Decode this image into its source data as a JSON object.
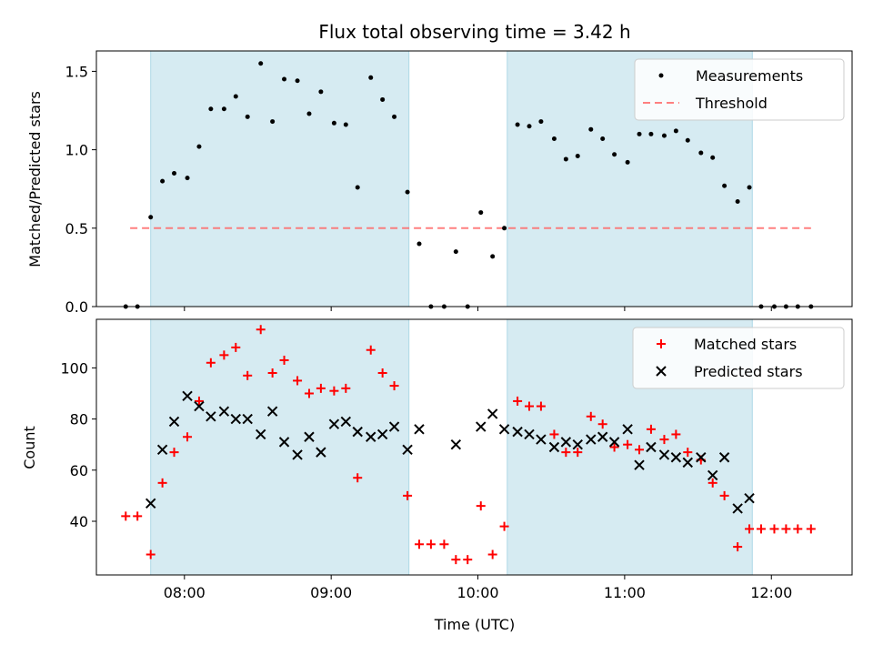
{
  "colors": {
    "shade": "#add8e6",
    "measurement": "#000000",
    "threshold": "#ff6b6b",
    "matched": "#ff0000",
    "predicted": "#000000"
  },
  "chart_data": [
    {
      "type": "scatter",
      "title": "Flux total observing time = 3.42 h",
      "xlabel": "",
      "ylabel": "Matched/Predicted stars",
      "xlim_hours": [
        7.4,
        12.55
      ],
      "ylim": [
        0,
        1.63
      ],
      "yticks": [
        0.0,
        0.5,
        1.0,
        1.5
      ],
      "ytick_labels": [
        "0.0",
        "0.5",
        "1.0",
        "1.5"
      ],
      "shaded_intervals": [
        {
          "start": 7.77,
          "end": 9.53
        },
        {
          "start": 10.2,
          "end": 11.87
        }
      ],
      "threshold": {
        "name": "Threshold",
        "value": 0.5,
        "x_start": 7.63,
        "x_end": 12.27
      },
      "legend": [
        "Measurements",
        "Threshold"
      ],
      "legend_position": "upper right",
      "series": [
        {
          "name": "Measurements",
          "x": [
            7.6,
            7.68,
            7.77,
            7.85,
            7.93,
            8.02,
            8.1,
            8.18,
            8.27,
            8.35,
            8.43,
            8.52,
            8.6,
            8.68,
            8.77,
            8.85,
            8.93,
            9.02,
            9.1,
            9.18,
            9.27,
            9.35,
            9.43,
            9.52,
            9.6,
            9.68,
            9.77,
            9.85,
            9.93,
            10.02,
            10.1,
            10.18,
            10.27,
            10.35,
            10.43,
            10.52,
            10.6,
            10.68,
            10.77,
            10.85,
            10.93,
            11.02,
            11.1,
            11.18,
            11.27,
            11.35,
            11.43,
            11.52,
            11.6,
            11.68,
            11.77,
            11.85,
            11.93,
            12.02,
            12.1,
            12.18,
            12.27
          ],
          "y": [
            0.0,
            0.0,
            0.57,
            0.8,
            0.85,
            0.82,
            1.02,
            1.26,
            1.26,
            1.34,
            1.21,
            1.55,
            1.18,
            1.45,
            1.44,
            1.23,
            1.37,
            1.17,
            1.16,
            0.76,
            1.46,
            1.32,
            1.21,
            0.73,
            0.4,
            0.0,
            0.0,
            0.35,
            0.0,
            0.6,
            0.32,
            0.5,
            1.16,
            1.15,
            1.18,
            1.07,
            0.94,
            0.96,
            1.13,
            1.07,
            0.97,
            0.92,
            1.1,
            1.1,
            1.09,
            1.12,
            1.06,
            0.98,
            0.95,
            0.77,
            0.67,
            0.76,
            0.0,
            0.0,
            0.0,
            0.0,
            0.0
          ]
        }
      ]
    },
    {
      "type": "scatter",
      "title": "",
      "xlabel": "Time (UTC)",
      "ylabel": "Count",
      "xlim_hours": [
        7.4,
        12.55
      ],
      "ylim": [
        19,
        119
      ],
      "yticks": [
        40,
        60,
        80,
        100
      ],
      "ytick_labels": [
        "40",
        "60",
        "80",
        "100"
      ],
      "xticks_hours": [
        8,
        9,
        10,
        11,
        12
      ],
      "xtick_labels": [
        "08:00",
        "09:00",
        "10:00",
        "11:00",
        "12:00"
      ],
      "shaded_intervals": [
        {
          "start": 7.77,
          "end": 9.53
        },
        {
          "start": 10.2,
          "end": 11.87
        }
      ],
      "legend": [
        "Matched stars",
        "Predicted stars"
      ],
      "legend_position": "upper right",
      "series": [
        {
          "name": "Matched stars",
          "marker": "plus",
          "x": [
            7.6,
            7.68,
            7.77,
            7.85,
            7.93,
            8.02,
            8.1,
            8.18,
            8.27,
            8.35,
            8.43,
            8.52,
            8.6,
            8.68,
            8.77,
            8.85,
            8.93,
            9.02,
            9.1,
            9.18,
            9.27,
            9.35,
            9.43,
            9.52,
            9.6,
            9.68,
            9.77,
            9.85,
            9.93,
            10.02,
            10.1,
            10.18,
            10.27,
            10.35,
            10.43,
            10.52,
            10.6,
            10.68,
            10.77,
            10.85,
            10.93,
            11.02,
            11.1,
            11.18,
            11.27,
            11.35,
            11.43,
            11.52,
            11.6,
            11.68,
            11.77,
            11.85,
            11.93,
            12.02,
            12.1,
            12.18,
            12.27
          ],
          "y": [
            42,
            42,
            27,
            55,
            67,
            73,
            87,
            102,
            105,
            108,
            97,
            115,
            98,
            103,
            95,
            90,
            92,
            91,
            92,
            57,
            107,
            98,
            93,
            50,
            31,
            31,
            31,
            25,
            25,
            46,
            27,
            38,
            87,
            85,
            85,
            74,
            67,
            67,
            81,
            78,
            69,
            70,
            68,
            76,
            72,
            74,
            67,
            64,
            55,
            50,
            30,
            37,
            37,
            37,
            37,
            37,
            37
          ]
        },
        {
          "name": "Predicted stars",
          "marker": "x",
          "x": [
            7.77,
            7.85,
            7.93,
            8.02,
            8.1,
            8.18,
            8.27,
            8.35,
            8.43,
            8.52,
            8.6,
            8.68,
            8.77,
            8.85,
            8.93,
            9.02,
            9.1,
            9.18,
            9.27,
            9.35,
            9.43,
            9.52,
            9.6,
            9.85,
            10.02,
            10.1,
            10.18,
            10.27,
            10.35,
            10.43,
            10.52,
            10.6,
            10.68,
            10.77,
            10.85,
            10.93,
            11.02,
            11.1,
            11.18,
            11.27,
            11.35,
            11.43,
            11.52,
            11.6,
            11.68,
            11.77,
            11.85
          ],
          "y": [
            47,
            68,
            79,
            89,
            85,
            81,
            83,
            80,
            80,
            74,
            83,
            71,
            66,
            73,
            67,
            78,
            79,
            75,
            73,
            74,
            77,
            68,
            76,
            70,
            77,
            82,
            76,
            75,
            74,
            72,
            69,
            71,
            70,
            72,
            73,
            71,
            76,
            62,
            69,
            66,
            65,
            63,
            65,
            58,
            65,
            45,
            49
          ]
        }
      ]
    }
  ]
}
